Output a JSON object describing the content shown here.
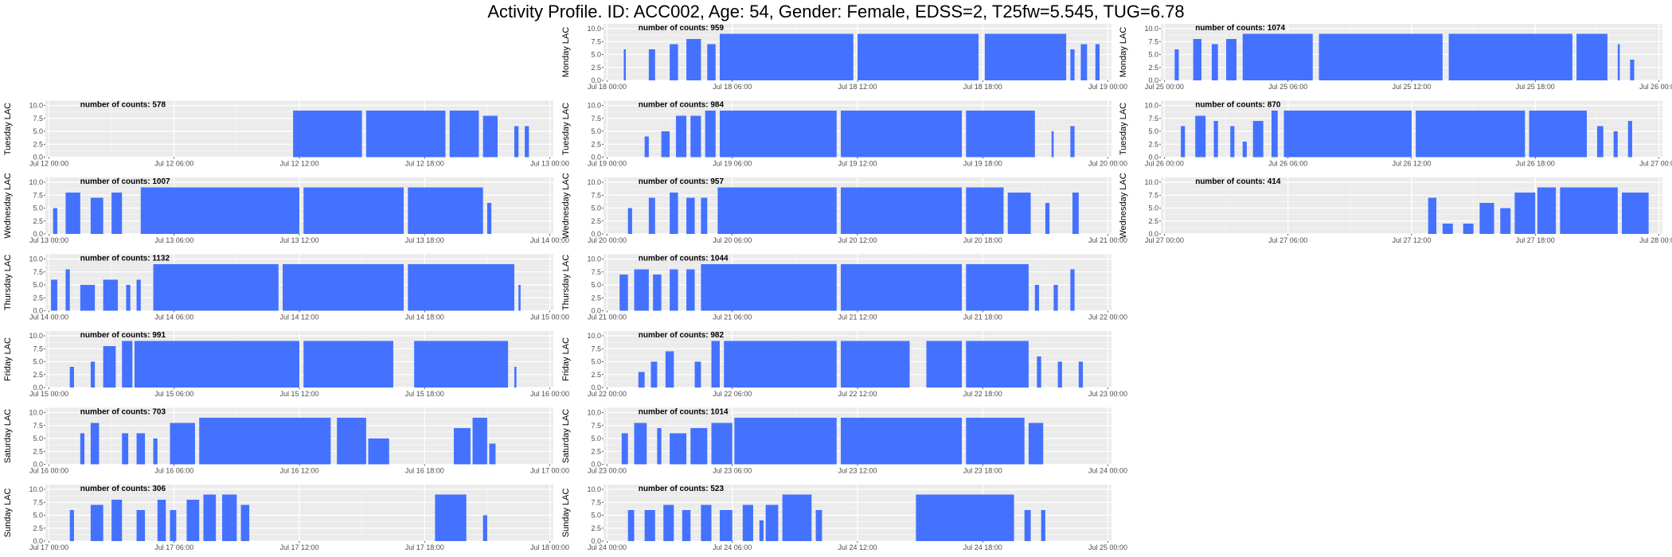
{
  "title": "Activity Profile. ID: ACC002, Age: 54, Gender: Female, EDSS=2, T25fw=5.545, TUG=6.78",
  "annotation_prefix": "number of counts: ",
  "colors": {
    "bar": "#4472ff",
    "panel_bg": "#ebebeb",
    "grid_major": "#ffffff"
  },
  "chart_data": {
    "type": "bar",
    "yticks": [
      "0.0",
      "2.5",
      "5.0",
      "7.5",
      "10.0"
    ],
    "ylim": [
      0,
      10
    ],
    "xlim_hours": [
      0,
      24
    ],
    "grid": true,
    "panels": [
      {
        "ylabel": "Monday LAC",
        "column": 2,
        "row": 0,
        "counts": "959",
        "xticks": [
          "Jul 18 00:00",
          "Jul 18 06:00",
          "Jul 18 12:00",
          "Jul 18 18:00",
          "Jul 19 00:00"
        ],
        "segments": [
          [
            0.8,
            0.9,
            6
          ],
          [
            2.0,
            2.3,
            6
          ],
          [
            3.0,
            3.4,
            7
          ],
          [
            3.8,
            4.5,
            8
          ],
          [
            4.8,
            5.2,
            7
          ],
          [
            5.4,
            11.8,
            9
          ],
          [
            12.0,
            17.8,
            9
          ],
          [
            18.1,
            22.0,
            9
          ],
          [
            22.2,
            22.4,
            6
          ],
          [
            22.7,
            23.0,
            7
          ],
          [
            23.4,
            23.6,
            7
          ]
        ]
      },
      {
        "ylabel": "Monday LAC",
        "column": 3,
        "row": 0,
        "counts": "1074",
        "xticks": [
          "Jul 25 00:00",
          "Jul 25 06:00",
          "Jul 25 12:00",
          "Jul 25 18:00",
          "Jul 26 00:00"
        ],
        "segments": [
          [
            0.5,
            0.7,
            6
          ],
          [
            1.4,
            1.8,
            8
          ],
          [
            2.3,
            2.6,
            7
          ],
          [
            3.0,
            3.5,
            8
          ],
          [
            3.8,
            7.2,
            9
          ],
          [
            7.5,
            13.5,
            9
          ],
          [
            13.8,
            19.8,
            9
          ],
          [
            20.0,
            21.5,
            9
          ],
          [
            22.0,
            22.1,
            7
          ],
          [
            22.6,
            22.8,
            4
          ]
        ]
      },
      {
        "ylabel": "Tuesday LAC",
        "column": 1,
        "row": 1,
        "counts": "578",
        "xticks": [
          "Jul 12 00:00",
          "Jul 12 06:00",
          "Jul 12 12:00",
          "Jul 12 18:00",
          "Jul 13 00:00"
        ],
        "segments": [
          [
            11.7,
            15.0,
            9
          ],
          [
            15.2,
            19.0,
            9
          ],
          [
            19.2,
            20.6,
            9
          ],
          [
            20.8,
            21.5,
            8
          ],
          [
            22.3,
            22.5,
            6
          ],
          [
            22.8,
            23.0,
            6
          ]
        ]
      },
      {
        "ylabel": "Tuesday LAC",
        "column": 2,
        "row": 1,
        "counts": "984",
        "xticks": [
          "Jul 19 00:00",
          "Jul 19 06:00",
          "Jul 19 12:00",
          "Jul 19 18:00",
          "Jul 20 00:00"
        ],
        "segments": [
          [
            1.8,
            2.0,
            4
          ],
          [
            2.6,
            3.0,
            5
          ],
          [
            3.3,
            3.8,
            8
          ],
          [
            4.0,
            4.5,
            8
          ],
          [
            4.7,
            5.2,
            9
          ],
          [
            5.4,
            11.0,
            9
          ],
          [
            11.2,
            17.0,
            9
          ],
          [
            17.2,
            20.5,
            9
          ],
          [
            21.3,
            21.4,
            5
          ],
          [
            22.2,
            22.4,
            6
          ]
        ]
      },
      {
        "ylabel": "Tuesday LAC",
        "column": 3,
        "row": 1,
        "counts": "870",
        "xticks": [
          "Jul 26 00:00",
          "Jul 26 06:00",
          "Jul 26 12:00",
          "Jul 26 18:00",
          "Jul 27 00:00"
        ],
        "segments": [
          [
            0.8,
            1.0,
            6
          ],
          [
            1.5,
            2.0,
            8
          ],
          [
            2.4,
            2.6,
            7
          ],
          [
            3.2,
            3.4,
            6
          ],
          [
            3.8,
            4.0,
            3
          ],
          [
            4.3,
            4.8,
            7
          ],
          [
            5.2,
            5.5,
            9
          ],
          [
            5.8,
            12.0,
            9
          ],
          [
            12.2,
            17.5,
            9
          ],
          [
            17.7,
            20.5,
            9
          ],
          [
            21.0,
            21.3,
            6
          ],
          [
            21.8,
            22.0,
            5
          ],
          [
            22.5,
            22.7,
            7
          ]
        ]
      },
      {
        "ylabel": "Wednesday LAC",
        "column": 1,
        "row": 2,
        "counts": "1007",
        "xticks": [
          "Jul 13 00:00",
          "Jul 13 06:00",
          "Jul 13 12:00",
          "Jul 13 18:00",
          "Jul 14 00:00"
        ],
        "segments": [
          [
            0.2,
            0.4,
            5
          ],
          [
            0.8,
            1.5,
            8
          ],
          [
            2.0,
            2.6,
            7
          ],
          [
            3.0,
            3.5,
            8
          ],
          [
            4.4,
            12.0,
            9
          ],
          [
            12.2,
            17.0,
            9
          ],
          [
            17.2,
            20.8,
            9
          ],
          [
            21.0,
            21.2,
            6
          ]
        ]
      },
      {
        "ylabel": "Wednesday LAC",
        "column": 2,
        "row": 2,
        "counts": "957",
        "xticks": [
          "Jul 20 00:00",
          "Jul 20 06:00",
          "Jul 20 12:00",
          "Jul 20 18:00",
          "Jul 21 00:00"
        ],
        "segments": [
          [
            1.0,
            1.2,
            5
          ],
          [
            2.0,
            2.3,
            7
          ],
          [
            3.0,
            3.4,
            8
          ],
          [
            3.8,
            4.2,
            7
          ],
          [
            4.5,
            4.8,
            7
          ],
          [
            5.3,
            11.0,
            9
          ],
          [
            11.2,
            17.0,
            9
          ],
          [
            17.2,
            19.0,
            9
          ],
          [
            19.2,
            20.3,
            8
          ],
          [
            21.0,
            21.2,
            6
          ],
          [
            22.3,
            22.6,
            8
          ]
        ]
      },
      {
        "ylabel": "Wednesday LAC",
        "column": 3,
        "row": 2,
        "counts": "414",
        "xticks": [
          "Jul 27 00:00",
          "Jul 27 06:00",
          "Jul 27 12:00",
          "Jul 27 18:00",
          "Jul 28 00:00"
        ],
        "segments": [
          [
            12.8,
            13.2,
            7
          ],
          [
            13.5,
            14.0,
            2
          ],
          [
            14.5,
            15.0,
            2
          ],
          [
            15.3,
            16.0,
            6
          ],
          [
            16.3,
            16.8,
            5
          ],
          [
            17.0,
            18.0,
            8
          ],
          [
            18.1,
            19.0,
            9
          ],
          [
            19.2,
            22.0,
            9
          ],
          [
            22.2,
            23.5,
            8
          ]
        ]
      },
      {
        "ylabel": "Thursday LAC",
        "column": 1,
        "row": 3,
        "counts": "1132",
        "xticks": [
          "Jul 14 00:00",
          "Jul 14 06:00",
          "Jul 14 12:00",
          "Jul 14 18:00",
          "Jul 15 00:00"
        ],
        "segments": [
          [
            0.1,
            0.4,
            6
          ],
          [
            0.8,
            1.0,
            8
          ],
          [
            1.5,
            2.2,
            5
          ],
          [
            2.6,
            3.3,
            6
          ],
          [
            3.7,
            3.9,
            5
          ],
          [
            4.2,
            4.4,
            6
          ],
          [
            5.0,
            11.0,
            9
          ],
          [
            11.2,
            17.0,
            9
          ],
          [
            17.2,
            22.3,
            9
          ],
          [
            22.5,
            22.6,
            5
          ]
        ]
      },
      {
        "ylabel": "Thursday LAC",
        "column": 2,
        "row": 3,
        "counts": "1044",
        "xticks": [
          "Jul 21 00:00",
          "Jul 21 06:00",
          "Jul 21 12:00",
          "Jul 21 18:00",
          "Jul 22 00:00"
        ],
        "segments": [
          [
            0.6,
            1.0,
            7
          ],
          [
            1.3,
            2.0,
            8
          ],
          [
            2.2,
            2.6,
            7
          ],
          [
            3.0,
            3.4,
            8
          ],
          [
            3.8,
            4.2,
            8
          ],
          [
            4.5,
            11.0,
            9
          ],
          [
            11.2,
            17.0,
            9
          ],
          [
            17.2,
            20.2,
            9
          ],
          [
            20.5,
            20.7,
            5
          ],
          [
            21.4,
            21.6,
            5
          ],
          [
            22.2,
            22.4,
            8
          ]
        ]
      },
      {
        "ylabel": "Friday LAC",
        "column": 1,
        "row": 4,
        "counts": "991",
        "xticks": [
          "Jul 15 00:00",
          "Jul 15 06:00",
          "Jul 15 12:00",
          "Jul 15 18:00",
          "Jul 16 00:00"
        ],
        "segments": [
          [
            1.0,
            1.2,
            4
          ],
          [
            2.0,
            2.2,
            5
          ],
          [
            2.6,
            3.2,
            8
          ],
          [
            3.5,
            4.0,
            9
          ],
          [
            4.1,
            12.0,
            9
          ],
          [
            12.2,
            16.5,
            9
          ],
          [
            17.5,
            22.0,
            9
          ],
          [
            22.3,
            22.4,
            4
          ]
        ]
      },
      {
        "ylabel": "Friday LAC",
        "column": 2,
        "row": 4,
        "counts": "982",
        "xticks": [
          "Jul 22 00:00",
          "Jul 22 06:00",
          "Jul 22 12:00",
          "Jul 22 18:00",
          "Jul 23 00:00"
        ],
        "segments": [
          [
            1.5,
            1.8,
            3
          ],
          [
            2.1,
            2.4,
            5
          ],
          [
            2.8,
            3.2,
            7
          ],
          [
            4.2,
            4.5,
            5
          ],
          [
            5.0,
            5.4,
            9
          ],
          [
            5.6,
            11.0,
            9
          ],
          [
            11.2,
            14.5,
            9
          ],
          [
            15.3,
            17.0,
            9
          ],
          [
            17.2,
            20.2,
            9
          ],
          [
            20.6,
            20.8,
            6
          ],
          [
            21.6,
            21.8,
            5
          ],
          [
            22.6,
            22.8,
            5
          ]
        ]
      },
      {
        "ylabel": "Saturday LAC",
        "column": 1,
        "row": 5,
        "counts": "703",
        "xticks": [
          "Jul 16 00:00",
          "Jul 16 06:00",
          "Jul 16 12:00",
          "Jul 16 18:00",
          "Jul 17 00:00"
        ],
        "segments": [
          [
            1.5,
            1.7,
            6
          ],
          [
            2.0,
            2.4,
            8
          ],
          [
            3.5,
            3.8,
            6
          ],
          [
            4.2,
            4.6,
            6
          ],
          [
            5.0,
            5.2,
            5
          ],
          [
            5.8,
            7.0,
            8
          ],
          [
            7.2,
            13.5,
            9
          ],
          [
            13.8,
            15.2,
            9
          ],
          [
            15.3,
            16.3,
            5
          ],
          [
            19.4,
            20.2,
            7
          ],
          [
            20.3,
            21.0,
            9
          ],
          [
            21.1,
            21.4,
            4
          ]
        ]
      },
      {
        "ylabel": "Saturday LAC",
        "column": 2,
        "row": 5,
        "counts": "1014",
        "xticks": [
          "Jul 23 00:00",
          "Jul 23 06:00",
          "Jul 23 12:00",
          "Jul 23 18:00",
          "Jul 24 00:00"
        ],
        "segments": [
          [
            0.7,
            1.0,
            6
          ],
          [
            1.3,
            1.9,
            8
          ],
          [
            2.4,
            2.6,
            7
          ],
          [
            3.0,
            3.8,
            6
          ],
          [
            4.0,
            4.8,
            7
          ],
          [
            5.0,
            6.0,
            8
          ],
          [
            6.1,
            11.0,
            9
          ],
          [
            11.2,
            17.0,
            9
          ],
          [
            17.2,
            20.0,
            9
          ],
          [
            20.2,
            20.9,
            8
          ]
        ]
      },
      {
        "ylabel": "Sunday LAC",
        "column": 1,
        "row": 6,
        "counts": "306",
        "xticks": [
          "Jul 17 00:00",
          "Jul 17 06:00",
          "Jul 17 12:00",
          "Jul 17 18:00",
          "Jul 18 00:00"
        ],
        "segments": [
          [
            1.0,
            1.2,
            6
          ],
          [
            2.0,
            2.6,
            7
          ],
          [
            3.0,
            3.5,
            8
          ],
          [
            4.2,
            4.6,
            6
          ],
          [
            5.2,
            5.6,
            8
          ],
          [
            5.8,
            6.1,
            6
          ],
          [
            6.6,
            7.2,
            8
          ],
          [
            7.4,
            8.0,
            9
          ],
          [
            8.3,
            9.0,
            9
          ],
          [
            9.2,
            9.6,
            7
          ],
          [
            18.5,
            20.0,
            9
          ],
          [
            20.8,
            21.0,
            5
          ]
        ]
      },
      {
        "ylabel": "Sunday LAC",
        "column": 2,
        "row": 6,
        "counts": "523",
        "xticks": [
          "Jul 24 00:00",
          "Jul 24 06:00",
          "Jul 24 12:00",
          "Jul 24 18:00",
          "Jul 25 00:00"
        ],
        "segments": [
          [
            1.0,
            1.3,
            6
          ],
          [
            1.8,
            2.3,
            6
          ],
          [
            2.7,
            3.2,
            7
          ],
          [
            3.6,
            4.0,
            6
          ],
          [
            4.5,
            5.0,
            7
          ],
          [
            5.4,
            6.0,
            6
          ],
          [
            6.5,
            7.0,
            7
          ],
          [
            7.3,
            7.5,
            4
          ],
          [
            7.6,
            8.2,
            7
          ],
          [
            8.4,
            9.8,
            9
          ],
          [
            10.0,
            10.3,
            6
          ],
          [
            14.8,
            19.5,
            9
          ],
          [
            20.0,
            20.3,
            6
          ],
          [
            20.8,
            21.0,
            6
          ]
        ]
      }
    ]
  }
}
